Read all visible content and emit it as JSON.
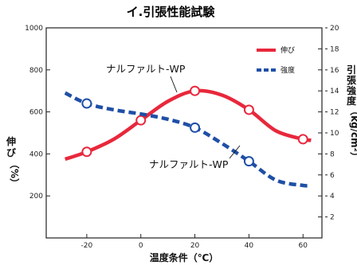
{
  "chart_data": {
    "type": "line",
    "title": "イ.引張性能試験",
    "xlabel": "温度条件（℃）",
    "ylabel_left": [
      "伸",
      "び",
      "（%）"
    ],
    "ylabel_right": [
      "引",
      "張",
      "強",
      "度",
      "（kg/cm²）"
    ],
    "x_ticks": [
      -20,
      0,
      20,
      40,
      60
    ],
    "xlim": [
      -35,
      67
    ],
    "y_left_ticks": [
      200,
      400,
      600,
      800,
      1000
    ],
    "ylim_left": [
      0,
      1000
    ],
    "y_right_ticks": [
      2,
      4,
      6,
      8,
      10,
      12,
      14,
      16,
      18,
      20
    ],
    "ylim_right": [
      0,
      20
    ],
    "grid": false,
    "legend_position": "top-right",
    "series": [
      {
        "name": "伸び",
        "axis": "left",
        "style": "solid",
        "color": "#e8283c",
        "x": [
          -28,
          -20,
          -10,
          0,
          10,
          20,
          30,
          40,
          50,
          60,
          63
        ],
        "y": [
          375,
          410,
          470,
          560,
          650,
          700,
          680,
          610,
          510,
          470,
          465
        ],
        "markers": [
          {
            "x": -20,
            "y": 410
          },
          {
            "x": 0,
            "y": 560
          },
          {
            "x": 20,
            "y": 700
          },
          {
            "x": 40,
            "y": 610
          },
          {
            "x": 60,
            "y": 470
          }
        ]
      },
      {
        "name": "強度",
        "axis": "right",
        "style": "dashed",
        "color": "#1f4fa6",
        "x": [
          -28,
          -20,
          -10,
          0,
          10,
          20,
          30,
          40,
          50,
          60,
          63
        ],
        "y": [
          13.8,
          12.8,
          12.2,
          11.8,
          11.3,
          10.5,
          9.0,
          7.3,
          5.5,
          5.0,
          5.0
        ],
        "markers": [
          {
            "x": -20,
            "y": 12.8
          },
          {
            "x": 20,
            "y": 10.5
          },
          {
            "x": 40,
            "y": 7.3
          }
        ]
      }
    ],
    "annotations": [
      {
        "text": "ナルファルト-WP",
        "series": "伸び"
      },
      {
        "text": "ナルファルト-WP",
        "series": "強度"
      }
    ]
  }
}
